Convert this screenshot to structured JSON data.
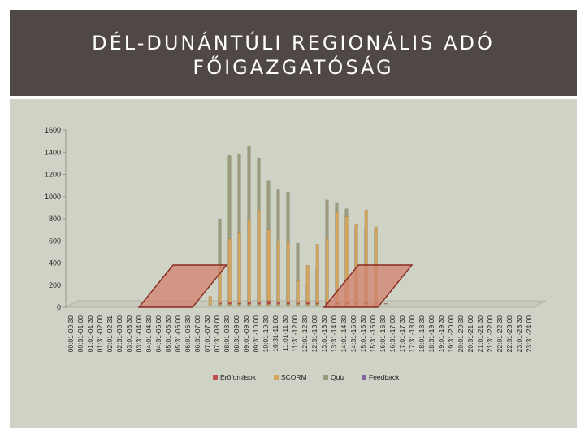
{
  "slide": {
    "title": "DÉL-DUNÁNTÚLI REGIONÁLIS ADÓ\nFŐIGAZGATÓSÁG"
  },
  "chart_data": {
    "type": "bar",
    "title": "",
    "xlabel": "",
    "ylabel": "",
    "ylim": [
      0,
      1600
    ],
    "yticks": [
      0,
      200,
      400,
      600,
      800,
      1000,
      1200,
      1400,
      1600
    ],
    "grid": false,
    "legend_position": "bottom",
    "categories": [
      "00:01-00:30",
      "00:31-01:00",
      "01:01-01:30",
      "01:31-02:00",
      "02:01-02:31",
      "02:31-03:00",
      "03:01-03:30",
      "03:31-04:00",
      "04:01-04:30",
      "04:31-05:00",
      "05:01-05:30",
      "05:31-06:00",
      "06:01-06:30",
      "06:31-07:00",
      "07:01-07:30",
      "07:31-08:00",
      "08:01-08:30",
      "08:31-09:00",
      "09:01-09:30",
      "09:31-10:00",
      "10:01-10:30",
      "10:31-11:00",
      "11:01-11:30",
      "11:31-12:00",
      "12:01-12:30",
      "12:31-13:00",
      "13:01-13:30",
      "13:31-14:00",
      "14:01-14:30",
      "14:31-15:00",
      "15:01-15:30",
      "15:31-16:00",
      "16:01-16:30",
      "16:31-17:00",
      "17:01-17:30",
      "17:31-18:00",
      "18:01-18:30",
      "18:31-19:00",
      "19:01-19:30",
      "19:31-20:00",
      "20:01-20:30",
      "20:31-21:00",
      "21:01-21:30",
      "21:31-22:00",
      "22:01-22:30",
      "22:31-23:00",
      "23:01-23:30",
      "23:31-24:00"
    ],
    "series": [
      {
        "name": "Erőforrások",
        "color": "#c0504d",
        "values": [
          0,
          0,
          0,
          0,
          0,
          0,
          0,
          0,
          0,
          0,
          0,
          0,
          0,
          0,
          0,
          10,
          20,
          10,
          15,
          20,
          30,
          15,
          20,
          10,
          15,
          10,
          15,
          20,
          20,
          10,
          15,
          10,
          5,
          0,
          0,
          0,
          0,
          0,
          0,
          0,
          0,
          0,
          0,
          0,
          0,
          0,
          0,
          0
        ]
      },
      {
        "name": "SCORM",
        "color": "#d4a55a",
        "values": [
          0,
          0,
          0,
          0,
          0,
          0,
          0,
          0,
          0,
          0,
          0,
          0,
          0,
          0,
          80,
          320,
          600,
          660,
          780,
          860,
          680,
          580,
          570,
          220,
          360,
          550,
          600,
          840,
          800,
          730,
          860,
          710,
          0,
          0,
          0,
          0,
          0,
          0,
          0,
          0,
          0,
          0,
          0,
          0,
          0,
          0,
          0,
          0
        ]
      },
      {
        "name": "Quiz",
        "color": "#9c9c7c",
        "values": [
          0,
          0,
          0,
          0,
          0,
          0,
          0,
          0,
          0,
          0,
          0,
          0,
          0,
          0,
          0,
          790,
          1360,
          1370,
          1450,
          1340,
          1130,
          1050,
          1030,
          570,
          190,
          330,
          960,
          930,
          880,
          720,
          700,
          690,
          0,
          0,
          0,
          0,
          0,
          0,
          0,
          0,
          0,
          0,
          0,
          0,
          0,
          0,
          0,
          0
        ]
      },
      {
        "name": "Feedback",
        "color": "#8064a2",
        "values": [
          0,
          0,
          0,
          0,
          0,
          0,
          0,
          0,
          0,
          0,
          0,
          0,
          0,
          0,
          0,
          0,
          0,
          0,
          0,
          0,
          0,
          0,
          0,
          0,
          0,
          0,
          0,
          0,
          0,
          0,
          0,
          0,
          0,
          0,
          0,
          0,
          0,
          0,
          0,
          0,
          0,
          0,
          0,
          0,
          0,
          0,
          0,
          0
        ]
      }
    ],
    "highlight_markers": [
      {
        "from_category": "03:31-04:00",
        "to_category": "06:01-06:30"
      },
      {
        "from_category": "13:01-13:30",
        "to_category": "15:31-16:00"
      }
    ]
  }
}
